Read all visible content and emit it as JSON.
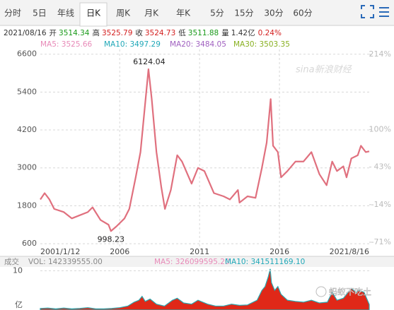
{
  "tabs": [
    "分时",
    "5日",
    "年线",
    "日K",
    "周K",
    "月K",
    "年K",
    "5分",
    "15分",
    "30分",
    "60分"
  ],
  "selected_tab": 3,
  "quote": {
    "date": "2021/08/16",
    "fields": [
      {
        "label": "开",
        "value": 3514.34,
        "color": "#1a9a1a"
      },
      {
        "label": "高",
        "value": 3525.79,
        "color": "#d42020"
      },
      {
        "label": "收",
        "value": 3524.73,
        "color": "#d42020"
      },
      {
        "label": "低",
        "value": 3511.88,
        "color": "#1a9a1a"
      },
      {
        "label": "量",
        "value": "1.42亿",
        "color": "#333333"
      }
    ],
    "change": "0.24%",
    "change_color": "#d42020"
  },
  "ma": [
    {
      "label": "MA5: 3525.66",
      "color": "#e88ab8"
    },
    {
      "label": "MA10: 3497.29",
      "color": "#20a8b8"
    },
    {
      "label": "MA20: 3484.05",
      "color": "#a060c0"
    },
    {
      "label": "MA30: 3503.35",
      "color": "#88b020"
    }
  ],
  "chart_data": [
    {
      "type": "line",
      "watermark": "sina新浪财经",
      "x": [
        2001.03,
        2001.3,
        2001.6,
        2001.9,
        2002.5,
        2003,
        2003.5,
        2004,
        2004.3,
        2004.8,
        2005.3,
        2005.45,
        2005.8,
        2006.3,
        2006.6,
        2007,
        2007.3,
        2007.8,
        2008,
        2008.3,
        2008.6,
        2008.83,
        2009.2,
        2009.6,
        2009.9,
        2010.5,
        2010.9,
        2011.3,
        2011.9,
        2012.5,
        2012.9,
        2013.4,
        2013.5,
        2014,
        2014.5,
        2014.9,
        2015.2,
        2015.45,
        2015.6,
        2015.9,
        2016.1,
        2016.5,
        2017,
        2017.5,
        2018,
        2018.5,
        2018.95,
        2019.3,
        2019.6,
        2020,
        2020.2,
        2020.5,
        2020.9,
        2021.1,
        2021.4,
        2021.62
      ],
      "series": [
        {
          "color": "#e0707e",
          "values": [
            2000,
            2200,
            2000,
            1700,
            1600,
            1400,
            1500,
            1600,
            1750,
            1350,
            1200,
            998.23,
            1150,
            1400,
            1700,
            2700,
            3500,
            6124.04,
            5200,
            3500,
            2400,
            1700,
            2300,
            3400,
            3200,
            2500,
            3000,
            2900,
            2200,
            2100,
            2000,
            2300,
            1900,
            2100,
            2050,
            3000,
            3800,
            5178,
            3700,
            3500,
            2700,
            2900,
            3200,
            3200,
            3500,
            2800,
            2450,
            3200,
            2900,
            3050,
            2700,
            3300,
            3400,
            3700,
            3500,
            3524.73
          ]
        }
      ],
      "xlim": [
        2001.03,
        2021.62
      ],
      "xticks": [
        {
          "value": 2001.03,
          "label": "2001/1/12"
        },
        2006,
        2011,
        2016,
        {
          "value": 2021.62,
          "label": "2021/8/16"
        }
      ],
      "ylim": [
        490,
        6750
      ],
      "yticks": [
        600,
        1800,
        3000,
        4200,
        5400,
        6600
      ],
      "y2lim": [
        -78.5,
        221.5
      ],
      "y2ticks": [
        {
          "value": 214,
          "label": "214%"
        },
        {
          "value": 100,
          "label": "100%"
        },
        {
          "value": 43,
          "label": "43%"
        },
        {
          "value": -14,
          "label": "-14%"
        },
        {
          "value": -71,
          "label": "-71%"
        }
      ],
      "grid": true
    },
    {
      "type": "area",
      "title": "成交",
      "legend": [
        {
          "label": "VOL: 142339555.00",
          "color": "#888888"
        },
        {
          "label": "MA5: 326099595.20",
          "color": "#e88ab8"
        },
        {
          "label": "MA10: 341511169.10",
          "color": "#20a8b8"
        }
      ],
      "x": [
        2001.03,
        2001.5,
        2002,
        2002.5,
        2003,
        2003.5,
        2004,
        2004.5,
        2005,
        2005.5,
        2006,
        2006.5,
        2006.9,
        2007.2,
        2007.4,
        2007.6,
        2007.9,
        2008.3,
        2008.8,
        2009.3,
        2009.6,
        2010,
        2010.5,
        2010.9,
        2011.5,
        2012,
        2012.5,
        2013,
        2013.5,
        2014,
        2014.6,
        2014.9,
        2015.1,
        2015.3,
        2015.42,
        2015.5,
        2015.7,
        2015.9,
        2016.1,
        2016.5,
        2017,
        2017.5,
        2018,
        2018.5,
        2019,
        2019.3,
        2019.6,
        2020,
        2020.2,
        2020.5,
        2020.8,
        2021,
        2021.3,
        2021.62
      ],
      "series": [
        {
          "color": "#e02818",
          "edge": "#2aa8b0",
          "values": [
            0.4,
            0.5,
            0.3,
            0.5,
            0.3,
            0.4,
            0.6,
            0.3,
            0.3,
            0.4,
            0.6,
            1.0,
            2.0,
            2.5,
            3.5,
            2.2,
            2.8,
            1.5,
            1.0,
            2.5,
            3.0,
            1.8,
            1.5,
            2.5,
            1.5,
            1.0,
            1.0,
            1.5,
            1.2,
            1.3,
            2.5,
            5.0,
            6,
            8.5,
            10.5,
            7,
            5,
            6,
            4,
            2.5,
            2.2,
            2.0,
            2.5,
            1.8,
            2.0,
            4.5,
            2.5,
            3.0,
            4,
            5.5,
            4.5,
            5,
            4.5,
            1.42
          ]
        }
      ],
      "xlim": [
        2001.03,
        2021.62
      ],
      "ylim": [
        0,
        11
      ],
      "yticks": [
        10
      ],
      "ylabel": "亿"
    }
  ],
  "wechat_watermark": "蚂蚁不吃土"
}
